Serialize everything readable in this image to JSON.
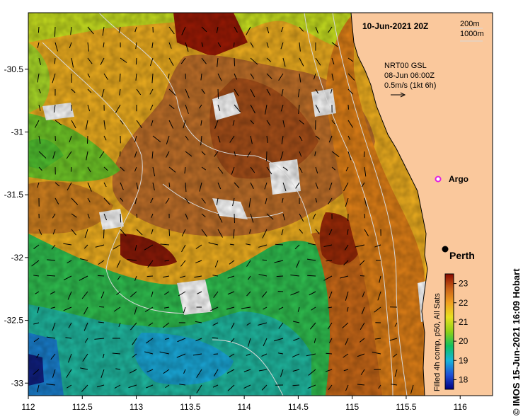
{
  "map": {
    "date_label": "10-Jun-2021 20Z",
    "depth_legend": [
      "200m",
      "1000m"
    ],
    "current_info": [
      "NRT00 GSL",
      "08-Jun 06:00Z",
      "0.5m/s (1kt 6h)"
    ],
    "places": [
      {
        "name": "Argo",
        "lon": 115.87,
        "lat": -31.47,
        "marker": "argo"
      },
      {
        "name": "Perth",
        "lon": 115.86,
        "lat": -31.95,
        "marker": "city"
      }
    ],
    "x_axis": {
      "ticks": [
        "112",
        "112.5",
        "113",
        "113.5",
        "114",
        "114.5",
        "115",
        "115.5",
        "116"
      ],
      "range": [
        112,
        116.3
      ]
    },
    "y_axis": {
      "ticks": [
        "-30.5",
        "-31",
        "-31.5",
        "-32",
        "-32.5",
        "-33"
      ],
      "range": [
        -33.1,
        -30.05
      ]
    },
    "colorbar": {
      "ticks": [
        "18",
        "19",
        "20",
        "21",
        "22",
        "23"
      ],
      "range": [
        17.5,
        23.5
      ],
      "label": "Filled 4h comp, p50, All Sats",
      "colors": [
        "#000080",
        "#1f4fd6",
        "#18b4d8",
        "#10c060",
        "#8fd018",
        "#e8e020",
        "#f0a020",
        "#c86018",
        "#8a0a00"
      ]
    },
    "credit": "© IMOS 15-Jun-2021 16:09 Hobart",
    "land_color": "#fac89c"
  }
}
